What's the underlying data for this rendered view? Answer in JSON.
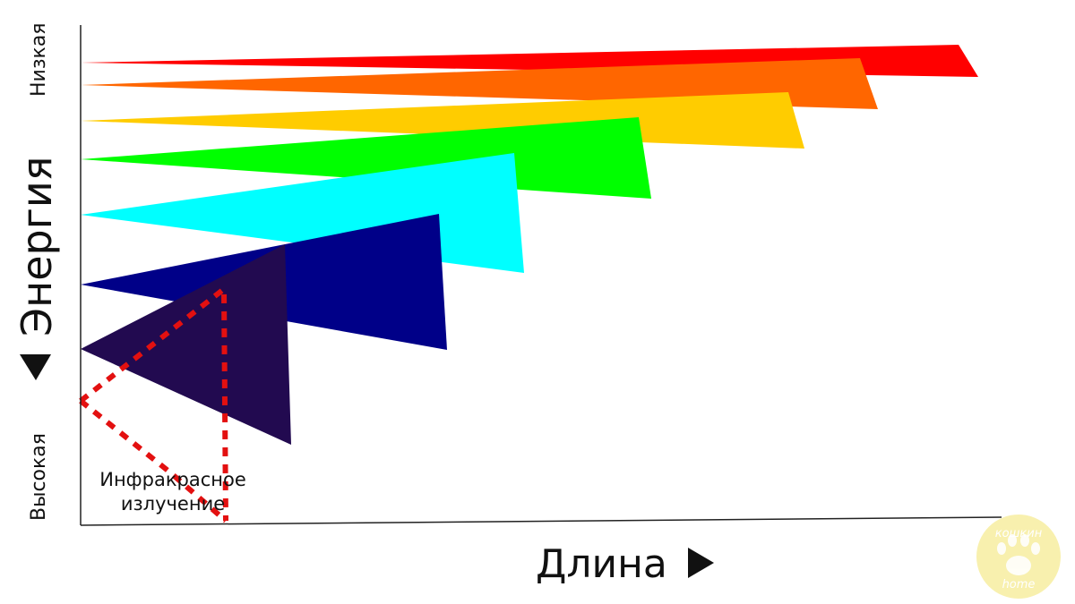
{
  "axes": {
    "y_top_label": "Низкая",
    "y_bottom_label": "Высокая",
    "y_title": "Энергия",
    "x_title": "Длина"
  },
  "annotation": {
    "line1": "Инфракрасное",
    "line2": "излучение",
    "color": "#e31010"
  },
  "beams": [
    {
      "name": "red",
      "color": "#ff0000"
    },
    {
      "name": "orange",
      "color": "#ff6600"
    },
    {
      "name": "yellow",
      "color": "#ffcc00"
    },
    {
      "name": "green",
      "color": "#00ff00"
    },
    {
      "name": "cyan",
      "color": "#00ffff"
    },
    {
      "name": "navy",
      "color": "#000088"
    },
    {
      "name": "violet",
      "color": "#220a50"
    }
  ],
  "watermark": {
    "icon": "paw-icon",
    "text_top": "кошкин",
    "text_bottom": "home",
    "color": "#f7eea0"
  }
}
